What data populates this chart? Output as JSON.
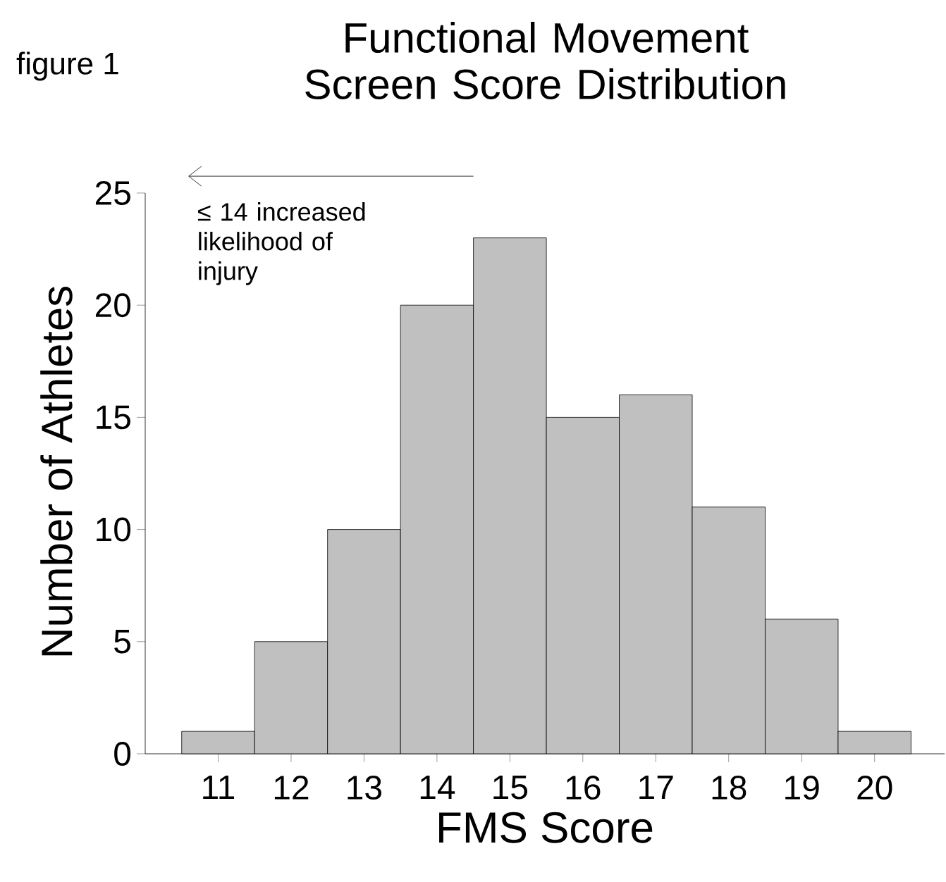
{
  "chart_data": {
    "type": "bar",
    "title": "Functional Movement Screen Score Distribution",
    "xlabel": "FMS Score",
    "ylabel": "Number of Athletes",
    "categories": [
      "11",
      "12",
      "13",
      "14",
      "15",
      "16",
      "17",
      "18",
      "19",
      "20"
    ],
    "values": [
      1,
      5,
      10,
      20,
      23,
      15,
      16,
      11,
      6,
      1
    ],
    "color": "#c0c0c0",
    "ylim": [
      0,
      25
    ],
    "yticks": [
      0,
      5,
      10,
      15,
      20,
      25
    ],
    "annotations": [
      "figure 1",
      "≤ 14 increased likelihood of injury"
    ]
  }
}
